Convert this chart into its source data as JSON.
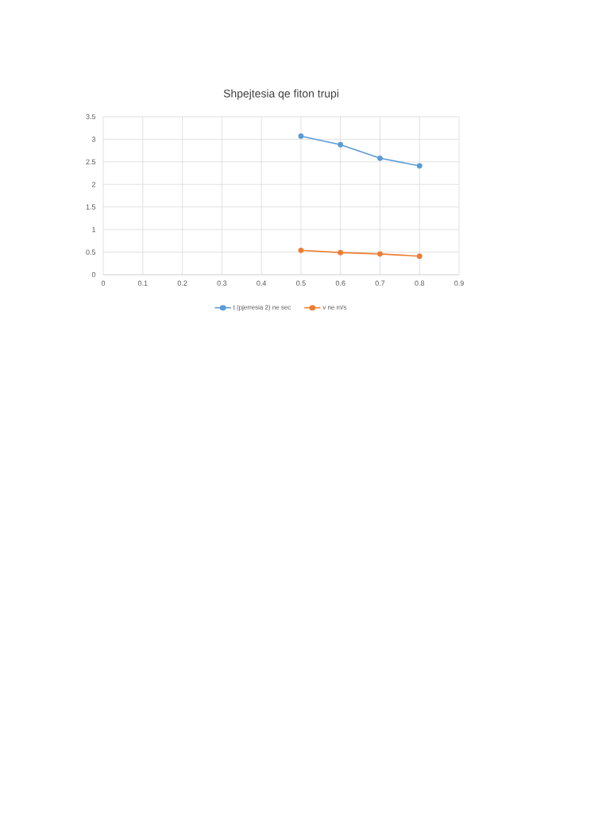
{
  "chart_data": {
    "type": "line",
    "title": "Shpejtesia qe fiton trupi",
    "x": [
      0.5,
      0.6,
      0.7,
      0.8
    ],
    "series": [
      {
        "name": "t (pjerresia 2) ne sec",
        "color": "#5b9bd5",
        "values": [
          3.07,
          2.88,
          2.58,
          2.41
        ]
      },
      {
        "name": "v ne m/s",
        "color": "#ed7d31",
        "values": [
          0.54,
          0.49,
          0.46,
          0.41
        ]
      }
    ],
    "xlim": [
      0,
      0.9
    ],
    "xticks": [
      0,
      0.1,
      0.2,
      0.3,
      0.4,
      0.5,
      0.6,
      0.7,
      0.8,
      0.9
    ],
    "ylim": [
      0,
      3.5
    ],
    "yticks": [
      0,
      0.5,
      1,
      1.5,
      2,
      2.5,
      3,
      3.5
    ],
    "grid": true,
    "legend": "bottom",
    "marker": "circle",
    "line_style": "solid"
  }
}
